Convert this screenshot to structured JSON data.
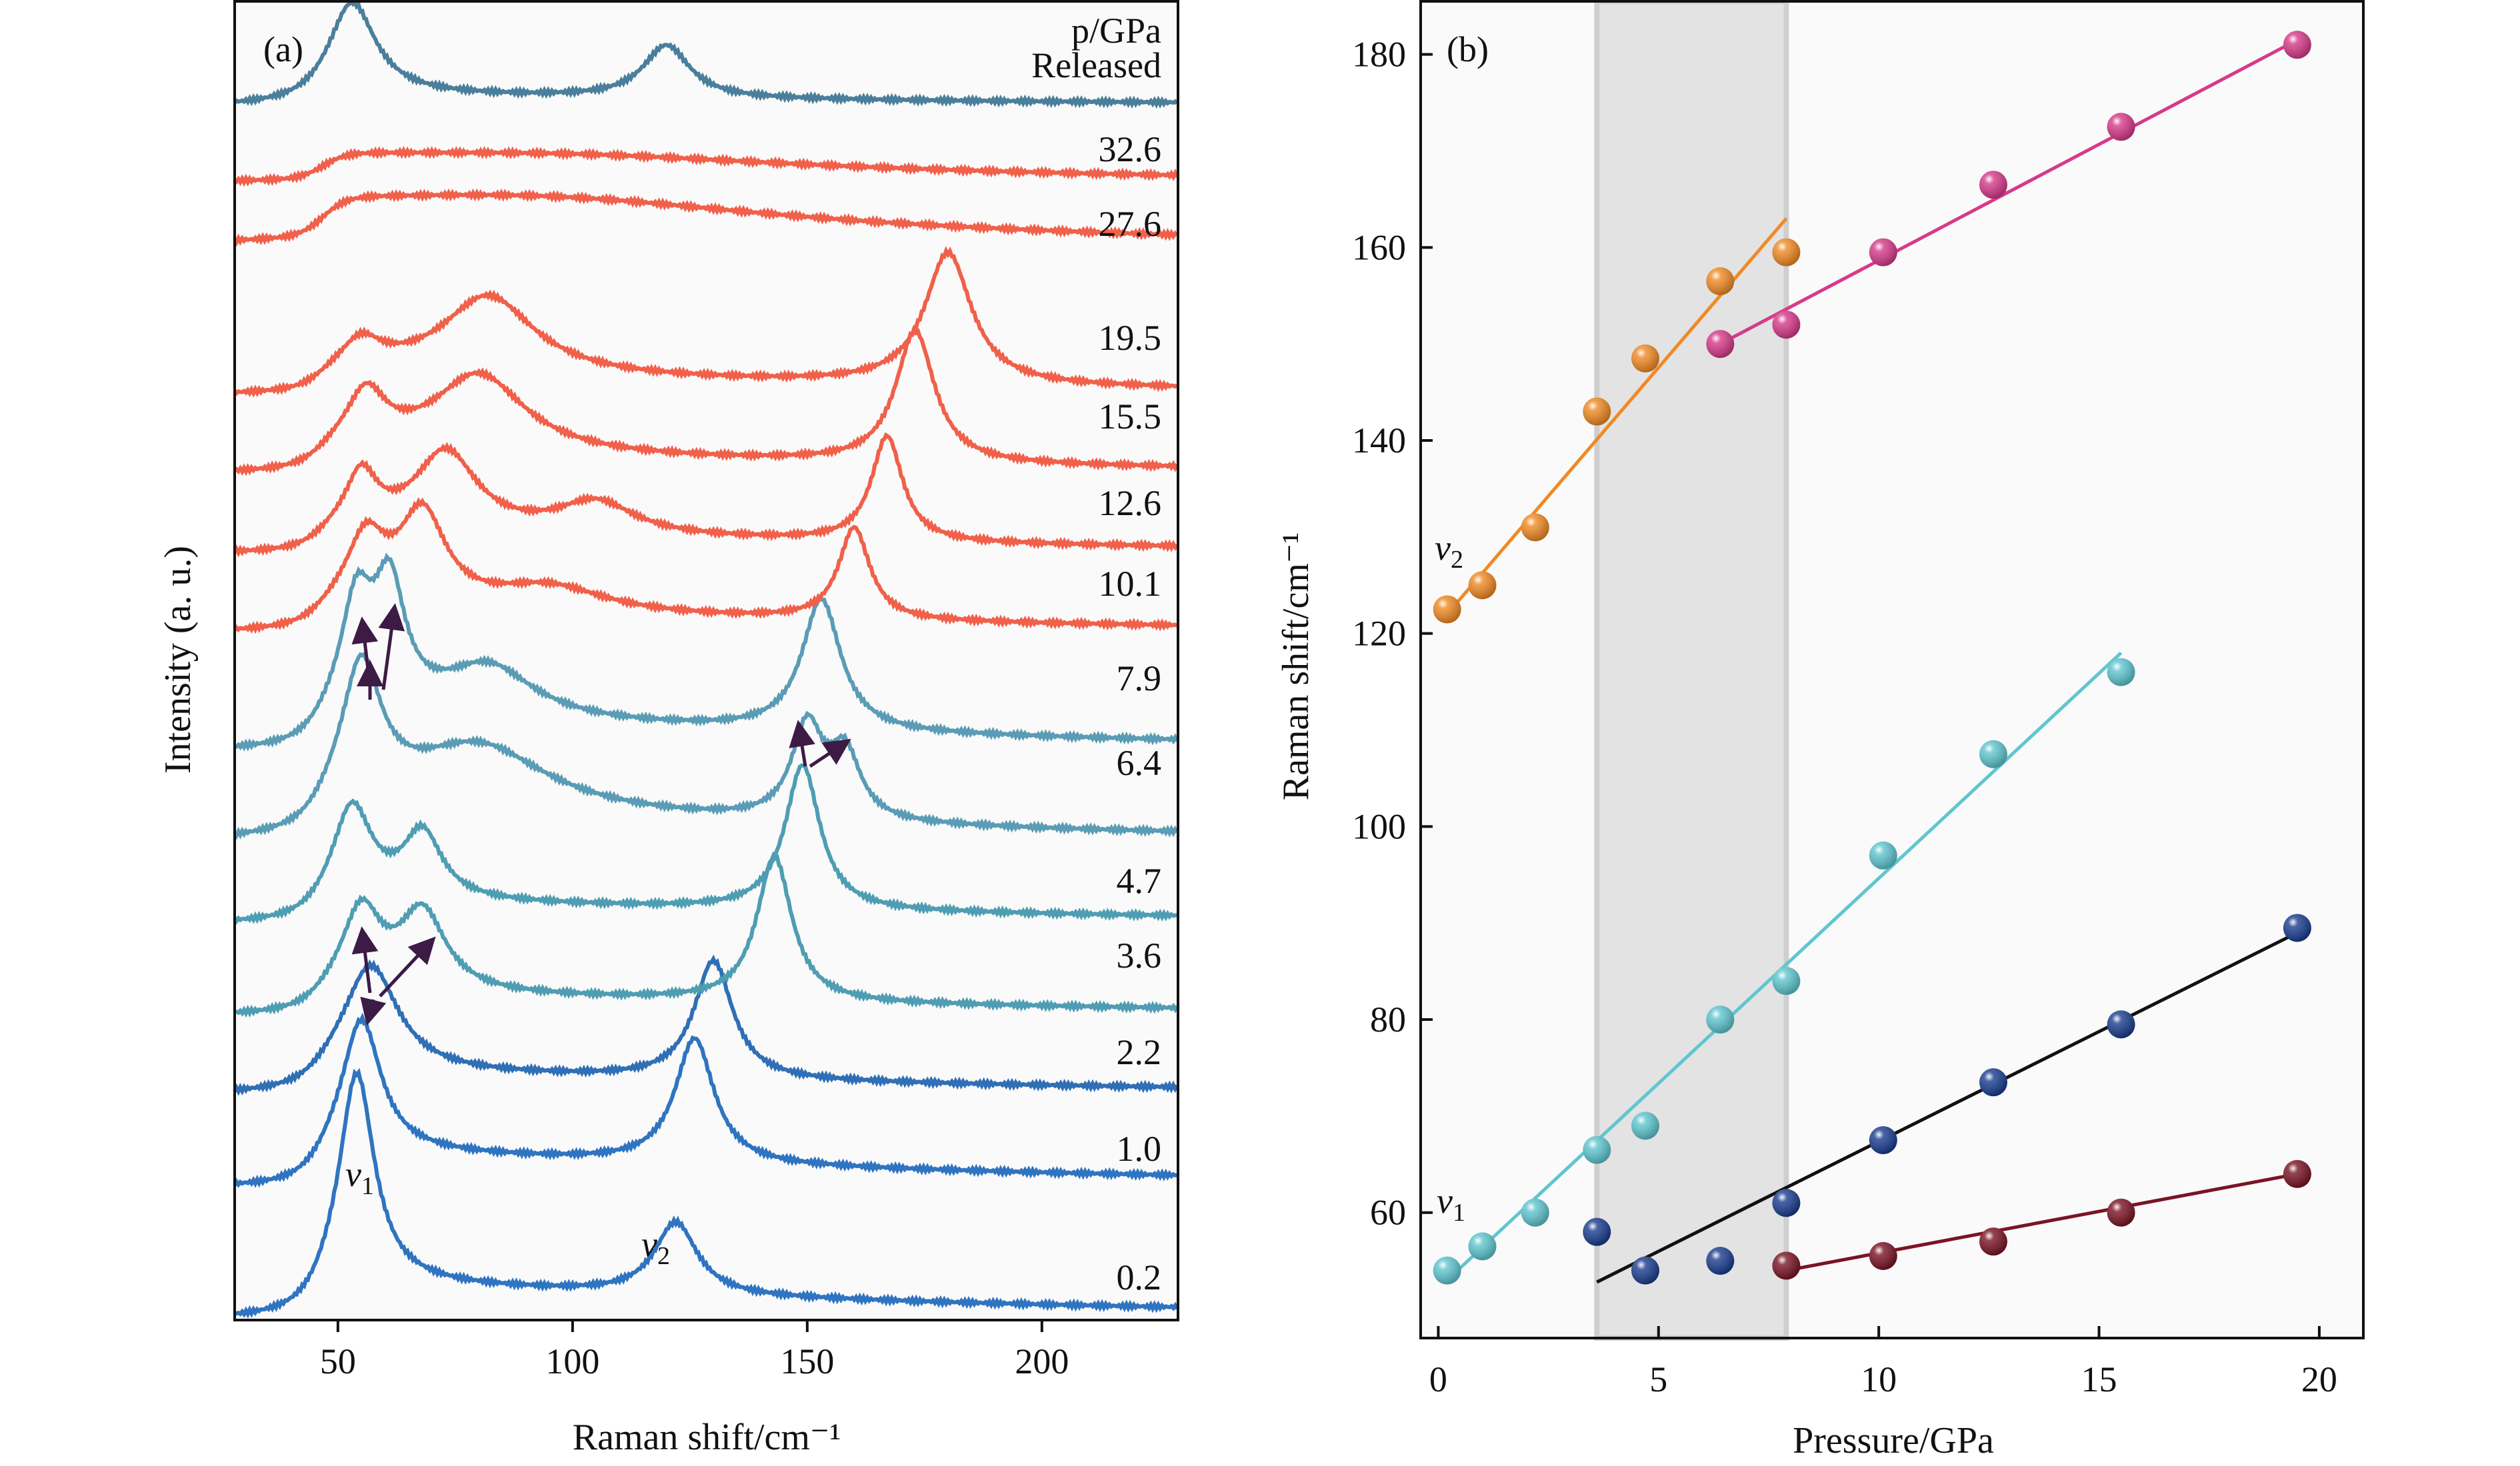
{
  "chart_data": [
    {
      "type": "line",
      "panel_label": "(a)",
      "xlabel": "Raman shift/cm⁻¹",
      "ylabel": "Intensity (a. u.)",
      "xlim": [
        28,
        229
      ],
      "xticks": [
        50,
        100,
        150,
        200
      ],
      "legend_title": "p/GPa",
      "grid": false,
      "annotations": {
        "v1": "v",
        "v1_sub": "1",
        "v2": "v",
        "v2_sub": "2"
      },
      "series": [
        {
          "name": "0.2",
          "color": "#2f74c0",
          "offset": 0,
          "shelf": 3,
          "peaks": [
            [
              54,
              16,
              4.5
            ],
            [
              122,
              5.5,
              5.5
            ]
          ]
        },
        {
          "name": "1.0",
          "color": "#2f74c0",
          "offset": 10,
          "shelf": 3,
          "peaks": [
            [
              55,
              10,
              5
            ],
            [
              126,
              9.5,
              5
            ]
          ]
        },
        {
          "name": "2.2",
          "color": "#2f6fb5",
          "offset": 17,
          "shelf": 2,
          "peaks": [
            [
              57,
              8,
              7
            ],
            [
              130,
              9,
              5
            ]
          ]
        },
        {
          "name": "3.6",
          "color": "#4f9db3",
          "offset": 23,
          "shelf": 2,
          "peaks": [
            [
              55,
              6,
              5
            ],
            [
              68,
              6,
              6
            ],
            [
              143,
              11,
              4.5
            ]
          ]
        },
        {
          "name": "4.7",
          "color": "#4f9db3",
          "offset": 30,
          "shelf": 2,
          "peaks": [
            [
              53,
              7,
              5
            ],
            [
              68,
              5,
              5
            ],
            [
              149,
              11,
              4.5
            ]
          ]
        },
        {
          "name": "6.4",
          "color": "#5a9cb5",
          "offset": 36,
          "shelf": 3,
          "peaks": [
            [
              55,
              10,
              5
            ],
            [
              80,
              5,
              18
            ],
            [
              150,
              7,
              4
            ],
            [
              158,
              5,
              4
            ]
          ]
        },
        {
          "name": "7.9",
          "color": "#5a9cb5",
          "offset": 43,
          "shelf": 3,
          "peaks": [
            [
              54,
              8,
              4
            ],
            [
              61,
              9,
              4
            ],
            [
              82,
              4,
              12
            ],
            [
              153,
              10,
              5
            ]
          ]
        },
        {
          "name": "10.1",
          "color": "#f0604a",
          "offset": 52,
          "shelf": 2,
          "peaks": [
            [
              56,
              5,
              5
            ],
            [
              68,
              7,
              6
            ],
            [
              95,
              2,
              15
            ],
            [
              160,
              7,
              4
            ]
          ]
        },
        {
          "name": "12.6",
          "color": "#f0604a",
          "offset": 58,
          "shelf": 2,
          "peaks": [
            [
              55,
              4,
              4
            ],
            [
              73,
              6,
              8
            ],
            [
              105,
              2.5,
              10
            ],
            [
              167,
              8,
              4
            ]
          ]
        },
        {
          "name": "15.5",
          "color": "#f0604a",
          "offset": 64,
          "shelf": 2,
          "peaks": [
            [
              56,
              4,
              5
            ],
            [
              80,
              6,
              12
            ],
            [
              173,
              10,
              5
            ]
          ]
        },
        {
          "name": "19.5",
          "color": "#f0604a",
          "offset": 70,
          "shelf": 2,
          "peaks": [
            [
              55,
              2,
              5
            ],
            [
              82,
              6,
              12
            ],
            [
              180,
              10,
              6
            ]
          ]
        },
        {
          "name": "27.6",
          "color": "#f0604a",
          "offset": 81,
          "shelf": 3,
          "peaks": [
            [
              95,
              2,
              60
            ]
          ]
        },
        {
          "name": "32.6",
          "color": "#f0604a",
          "offset": 86,
          "shelf": 2,
          "peaks": [
            [
              100,
              1,
              60
            ]
          ]
        },
        {
          "name": "Released",
          "color": "#4a7f9c",
          "offset": 92,
          "shelf": 1,
          "peaks": [
            [
              53,
              7,
              6
            ],
            [
              120,
              4,
              6
            ]
          ]
        }
      ]
    },
    {
      "type": "scatter",
      "panel_label": "(b)",
      "xlabel": "Pressure/GPa",
      "ylabel": "Raman shift/cm⁻¹",
      "xlim": [
        -0.4,
        21.0
      ],
      "ylim": [
        47,
        185.5
      ],
      "xticks": [
        0,
        5,
        10,
        15,
        20
      ],
      "yticks": [
        60,
        80,
        100,
        120,
        140,
        160,
        180
      ],
      "shaded_region": [
        3.6,
        7.9
      ],
      "grid": false,
      "annotations": {
        "v1": "v",
        "v1_sub": "1",
        "v2": "v",
        "v2_sub": "2"
      },
      "series": [
        {
          "color": "#f08a24",
          "fit": [
            [
              0.2,
              122
            ],
            [
              7.9,
              163
            ]
          ],
          "x": [
            0.2,
            1.0,
            2.2,
            3.6,
            4.7,
            6.4,
            7.9
          ],
          "y": [
            122.5,
            125,
            131,
            143,
            148.5,
            156.5,
            159.5
          ]
        },
        {
          "color": "#d63a8a",
          "fit": [
            [
              6.4,
              150
            ],
            [
              19.5,
              181.5
            ]
          ],
          "x": [
            6.4,
            7.9,
            10.1,
            12.6,
            15.5,
            19.5
          ],
          "y": [
            150,
            152,
            159.5,
            166.5,
            172.5,
            181
          ]
        },
        {
          "color": "#5fc6cf",
          "fit": [
            [
              0.2,
              53
            ],
            [
              15.5,
              118
            ]
          ],
          "x": [
            0.2,
            1.0,
            2.2,
            3.6,
            4.7,
            6.4,
            7.9,
            10.1,
            12.6,
            15.5
          ],
          "y": [
            54,
            56.5,
            60,
            66.5,
            69,
            80,
            84,
            97,
            107.5,
            116
          ]
        },
        {
          "color": "#1a3d8f",
          "fit": [
            [
              3.6,
              52.8
            ],
            [
              19.5,
              89
            ]
          ],
          "fitcolor": "#111111",
          "x": [
            3.6,
            4.7,
            6.4,
            7.9,
            10.1,
            12.6,
            15.5,
            19.5
          ],
          "y": [
            58,
            54,
            55,
            61,
            67.5,
            73.5,
            79.5,
            89.5
          ]
        },
        {
          "color": "#7a1424",
          "fit": [
            [
              7.9,
              54
            ],
            [
              19.5,
              64
            ]
          ],
          "x": [
            7.9,
            10.1,
            12.6,
            15.5,
            19.5
          ],
          "y": [
            54.5,
            55.5,
            57,
            60,
            64
          ]
        }
      ]
    }
  ]
}
